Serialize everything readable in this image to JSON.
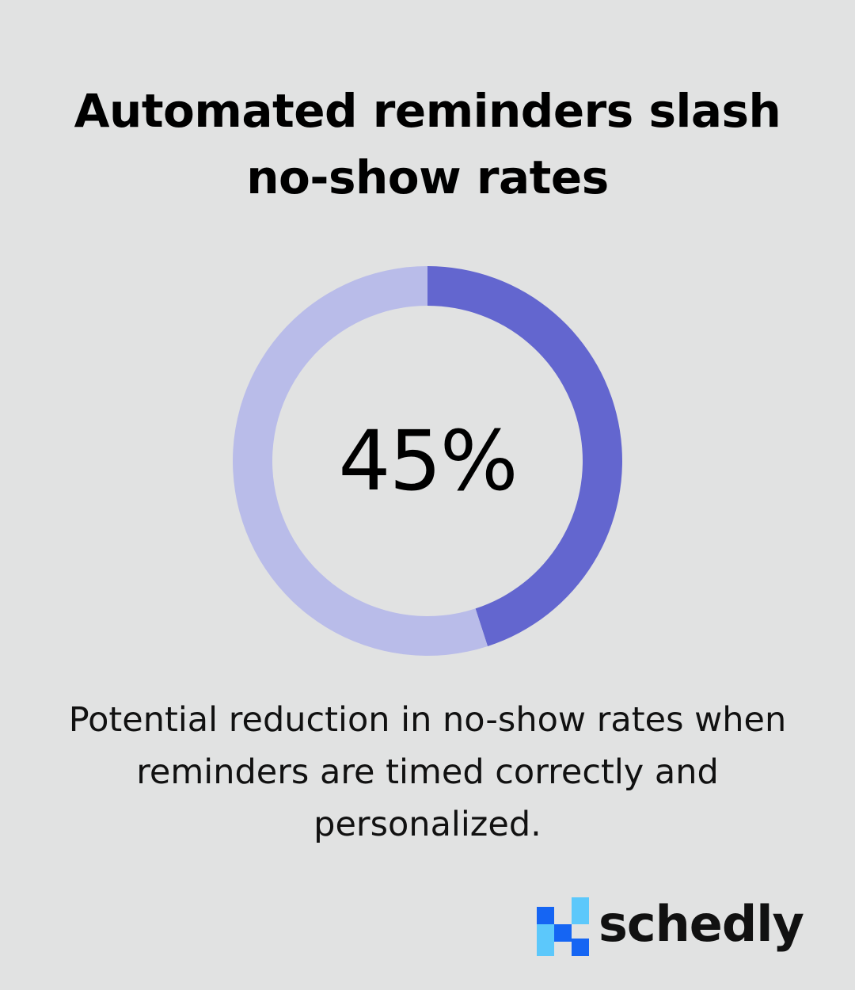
{
  "title": {
    "line1": "Automated reminders slash",
    "line2": "no-show rates"
  },
  "chart_data": {
    "type": "pie",
    "value_percent": 45,
    "label": "45%",
    "slices": [
      {
        "value": 45,
        "color": "#6366cf"
      },
      {
        "value": 55,
        "color": "#b9bce9"
      }
    ]
  },
  "caption": {
    "line1": "Potential reduction in no-show rates when",
    "line2": "reminders are timed correctly and",
    "line3": "personalized."
  },
  "logo": {
    "text": "schedly",
    "colors": {
      "dark_blue": "#1565f3",
      "light_blue": "#5cc8fb"
    }
  }
}
